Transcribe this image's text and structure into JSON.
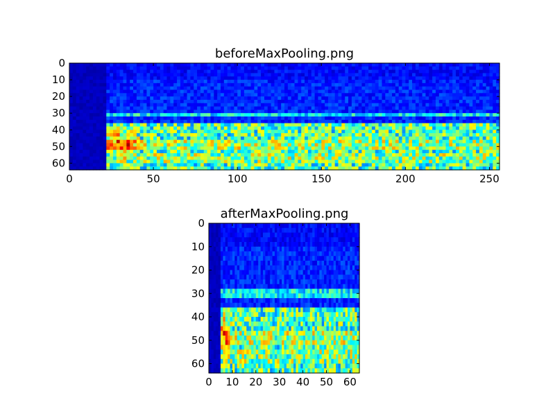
{
  "chart_data": [
    {
      "type": "heatmap",
      "title": "beforeMaxPooling.png",
      "x_ticks": [
        0,
        50,
        100,
        150,
        200,
        250
      ],
      "y_ticks": [
        0,
        10,
        20,
        30,
        40,
        50,
        60
      ],
      "xlim": [
        0,
        256
      ],
      "ylim": [
        64,
        0
      ],
      "colormap": "jet",
      "description_values": {
        "silent_columns": [
          0,
          22
        ],
        "band_rows": [
          30,
          64
        ],
        "hot_spot": {
          "x": 31,
          "y": 48
        }
      }
    },
    {
      "type": "heatmap",
      "title": "afterMaxPooling.png",
      "x_ticks": [
        0,
        10,
        20,
        30,
        40,
        50,
        60
      ],
      "y_ticks": [
        0,
        10,
        20,
        30,
        40,
        50,
        60
      ],
      "xlim": [
        0,
        64
      ],
      "ylim": [
        64,
        0
      ],
      "colormap": "jet",
      "description_values": {
        "silent_columns": [
          0,
          5
        ],
        "band_rows": [
          29,
          64
        ],
        "hot_spot": {
          "x": 7,
          "y": 47
        }
      }
    }
  ]
}
